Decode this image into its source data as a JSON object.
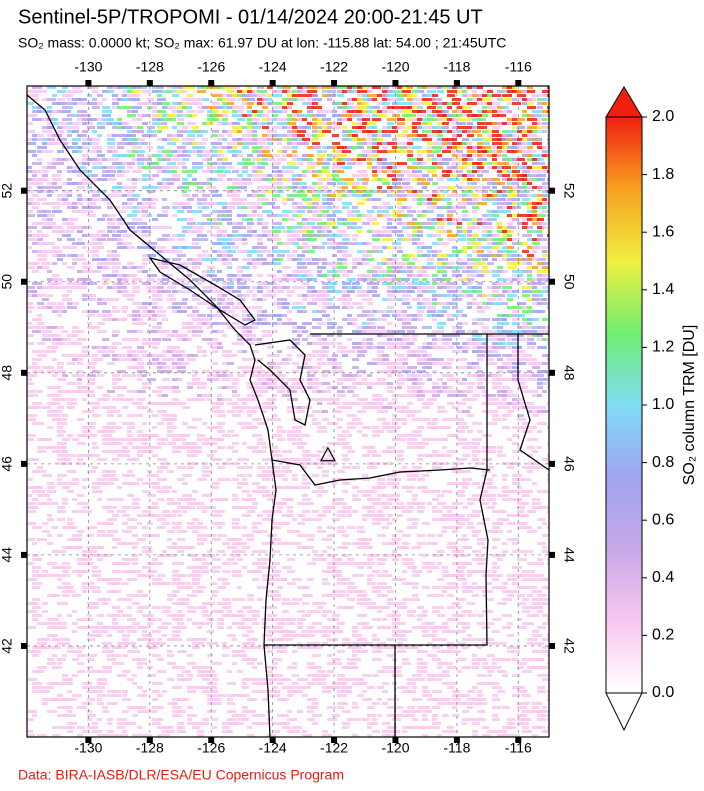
{
  "chart_data": {
    "type": "map",
    "title": "Sentinel-5P/TROPOMI - 01/14/2024 20:00-21:45 UT",
    "subtitle": "SO₂ mass: 0.0000 kt; SO₂ max: 61.97 DU at lon: -115.88 lat: 54.00 ; 21:45UTC",
    "credit": "Data: BIRA-IASB/DLR/ESA/EU Copernicus Program",
    "xlim": [
      -132,
      -115
    ],
    "ylim": [
      40,
      54.3
    ],
    "xticks": [
      -130,
      -128,
      -126,
      -124,
      -122,
      -120,
      -118,
      -116
    ],
    "yticks": [
      42,
      44,
      46,
      48,
      50,
      52
    ],
    "grid": true,
    "marker": {
      "lon": -122.2,
      "lat": 46.2
    },
    "colorbar": {
      "label": "SO₂ column TRM [DU]",
      "lim": [
        0,
        2
      ],
      "ticks": [
        {
          "value": 0,
          "label": "0.0"
        },
        {
          "value": 0.2,
          "label": "0.2"
        },
        {
          "value": 0.4,
          "label": "0.4"
        },
        {
          "value": 0.6,
          "label": "0.6"
        },
        {
          "value": 0.8,
          "label": "0.8"
        },
        {
          "value": 1,
          "label": "1.0"
        },
        {
          "value": 1.2,
          "label": "1.2"
        },
        {
          "value": 1.4,
          "label": "1.4"
        },
        {
          "value": 1.6,
          "label": "1.6"
        },
        {
          "value": 1.8,
          "label": "1.8"
        },
        {
          "value": 2,
          "label": "2.0"
        }
      ],
      "colormap": [
        "#ffffff",
        "#f6c8f0",
        "#c8a8e8",
        "#a0a4f0",
        "#80dcf4",
        "#70ee70",
        "#f0f040",
        "#f8a020",
        "#f02010"
      ]
    }
  }
}
